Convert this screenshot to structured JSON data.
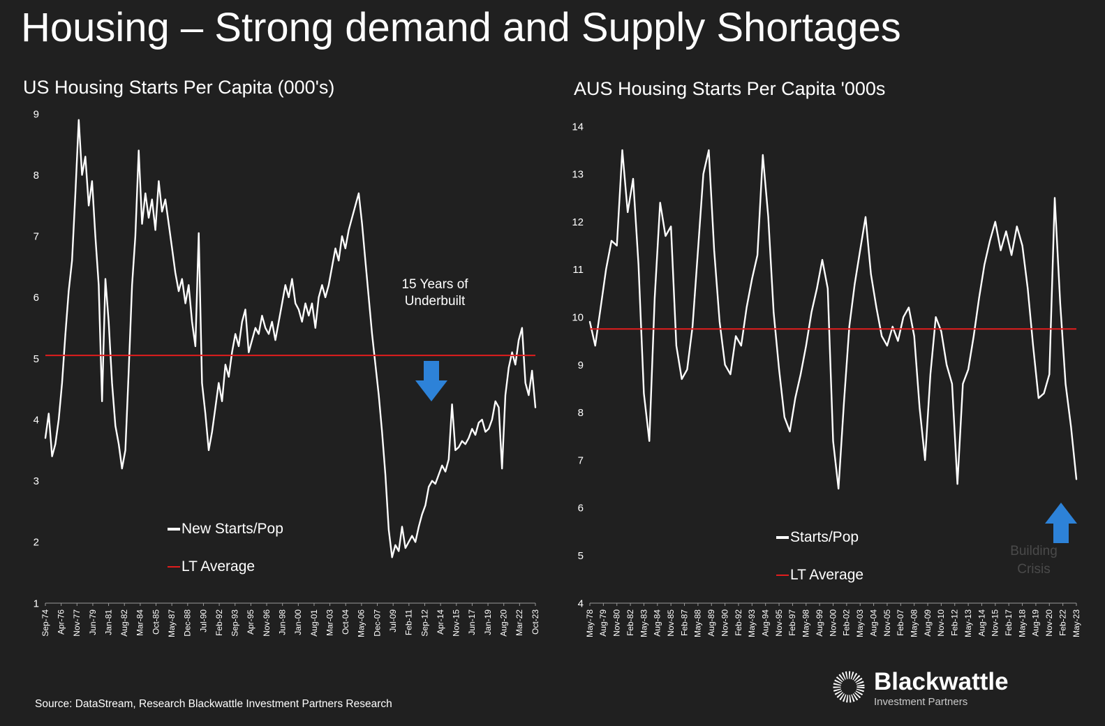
{
  "page_title": "Housing – Strong demand and Supply Shortages",
  "colors": {
    "background": "#202020",
    "series_line": "#ffffff",
    "average_line": "#e11d1d",
    "arrow": "#2d82d8",
    "axis": "#9a9a9a",
    "muted_annotation": "#4a4a4a"
  },
  "chart_data": [
    {
      "type": "line",
      "title": "US Housing Starts Per Capita (000's)",
      "ylim": [
        1,
        9
      ],
      "ytick_step": 1,
      "grid": false,
      "average": 5.05,
      "legend_position": "inside-bottom-left",
      "legend": [
        {
          "label": "New Starts/Pop",
          "color": "#ffffff"
        },
        {
          "label": "LT Average",
          "color": "#e11d1d"
        }
      ],
      "annotation": {
        "lines": [
          "15 Years of",
          "Underbuilt"
        ],
        "arrow": "down"
      },
      "x_tick_labels": [
        "Sep-74",
        "Apr-76",
        "Nov-77",
        "Jun-79",
        "Jan-81",
        "Aug-82",
        "Mar-84",
        "Oct-85",
        "May-87",
        "Dec-88",
        "Jul-90",
        "Feb-92",
        "Sep-93",
        "Apr-95",
        "Nov-96",
        "Jun-98",
        "Jan-00",
        "Aug-01",
        "Mar-03",
        "Oct-04",
        "May-06",
        "Dec-07",
        "Jul-09",
        "Feb-11",
        "Sep-12",
        "Apr-14",
        "Nov-15",
        "Jun-17",
        "Jan-19",
        "Aug-20",
        "Mar-22",
        "Oct-23"
      ],
      "series": [
        {
          "name": "New Starts/Pop",
          "values": [
            3.7,
            4.1,
            3.4,
            3.6,
            4.0,
            4.6,
            5.4,
            6.1,
            6.6,
            7.7,
            8.9,
            8.0,
            8.3,
            7.5,
            7.9,
            7.0,
            6.2,
            4.3,
            6.3,
            5.6,
            4.6,
            3.9,
            3.6,
            3.2,
            3.5,
            4.8,
            6.2,
            7.0,
            8.4,
            7.2,
            7.7,
            7.3,
            7.6,
            7.1,
            7.9,
            7.4,
            7.6,
            7.2,
            6.8,
            6.4,
            6.1,
            6.3,
            5.9,
            6.2,
            5.6,
            5.2,
            7.05,
            4.6,
            4.1,
            3.5,
            3.8,
            4.2,
            4.6,
            4.3,
            4.9,
            4.7,
            5.1,
            5.4,
            5.2,
            5.6,
            5.8,
            5.1,
            5.3,
            5.5,
            5.4,
            5.7,
            5.5,
            5.4,
            5.6,
            5.3,
            5.6,
            5.9,
            6.2,
            6.0,
            6.3,
            5.9,
            5.8,
            5.6,
            5.9,
            5.7,
            5.9,
            5.5,
            6.0,
            6.2,
            6.0,
            6.2,
            6.5,
            6.8,
            6.6,
            7.0,
            6.8,
            7.1,
            7.3,
            7.5,
            7.7,
            7.2,
            6.6,
            6.0,
            5.4,
            4.9,
            4.4,
            3.8,
            3.1,
            2.2,
            1.75,
            1.95,
            1.85,
            2.25,
            1.9,
            2.0,
            2.1,
            2.0,
            2.25,
            2.45,
            2.6,
            2.9,
            3.0,
            2.95,
            3.1,
            3.25,
            3.15,
            3.35,
            4.25,
            3.5,
            3.55,
            3.65,
            3.6,
            3.7,
            3.85,
            3.75,
            3.95,
            4.0,
            3.8,
            3.85,
            4.0,
            4.3,
            4.2,
            3.2,
            4.4,
            4.85,
            5.1,
            4.9,
            5.3,
            5.5,
            4.6,
            4.4,
            4.8,
            4.2
          ]
        }
      ]
    },
    {
      "type": "line",
      "title": "AUS Housing Starts Per Capita '000s",
      "ylim": [
        4,
        14
      ],
      "ytick_step": 1,
      "grid": false,
      "average": 9.75,
      "legend_position": "inside-bottom-center",
      "legend": [
        {
          "label": "Starts/Pop",
          "color": "#ffffff"
        },
        {
          "label": "LT Average",
          "color": "#e11d1d"
        }
      ],
      "annotation": {
        "lines": [
          "Building",
          "Crisis"
        ],
        "arrow": "up"
      },
      "x_tick_labels": [
        "May-78",
        "Aug-79",
        "Nov-80",
        "Feb-82",
        "May-83",
        "Aug-84",
        "Nov-85",
        "Feb-87",
        "May-88",
        "Aug-89",
        "Nov-90",
        "Feb-92",
        "May-93",
        "Aug-94",
        "Nov-95",
        "Feb-97",
        "May-98",
        "Aug-99",
        "Nov-00",
        "Feb-02",
        "May-03",
        "Aug-04",
        "Nov-05",
        "Feb-07",
        "May-08",
        "Aug-09",
        "Nov-10",
        "Feb-12",
        "May-13",
        "Aug-14",
        "Nov-15",
        "Feb-17",
        "May-18",
        "Aug-19",
        "Nov-20",
        "Feb-22",
        "May-23"
      ],
      "series": [
        {
          "name": "Starts/Pop",
          "values": [
            9.9,
            9.4,
            10.2,
            11.0,
            11.6,
            11.5,
            13.5,
            12.2,
            12.9,
            11.1,
            8.4,
            7.4,
            10.4,
            12.4,
            11.7,
            11.9,
            9.4,
            8.7,
            8.9,
            9.8,
            11.4,
            13.0,
            13.5,
            11.4,
            9.9,
            9.0,
            8.8,
            9.6,
            9.4,
            10.2,
            10.8,
            11.3,
            13.4,
            12.1,
            10.1,
            8.9,
            7.9,
            7.6,
            8.3,
            8.8,
            9.4,
            10.1,
            10.6,
            11.2,
            10.6,
            7.4,
            6.4,
            8.2,
            9.8,
            10.7,
            11.4,
            12.1,
            10.9,
            10.2,
            9.6,
            9.4,
            9.8,
            9.5,
            10.0,
            10.2,
            9.6,
            8.1,
            7.0,
            8.8,
            10.0,
            9.7,
            9.0,
            8.6,
            6.5,
            8.6,
            8.9,
            9.6,
            10.4,
            11.1,
            11.6,
            12.0,
            11.4,
            11.8,
            11.3,
            11.9,
            11.5,
            10.6,
            9.4,
            8.3,
            8.4,
            8.8,
            12.5,
            10.3,
            8.6,
            7.7,
            6.6
          ]
        }
      ]
    }
  ],
  "footer": {
    "source": "Source: DataStream, Research Blackwattle Investment Partners Research"
  },
  "logo": {
    "brand": "Blackwattle",
    "tagline": "Investment Partners"
  }
}
